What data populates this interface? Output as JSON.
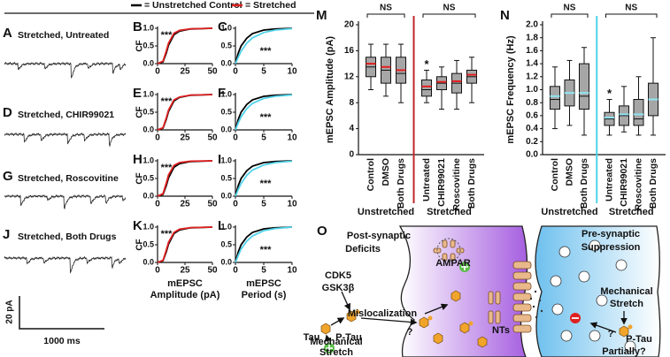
{
  "legend": {
    "control": "= Unstretched Control",
    "stretched": "= Stretched",
    "control_color": "#000000",
    "stretched_color": "#e02020"
  },
  "traces": [
    {
      "letter": "A",
      "title": "Stretched, Untreated"
    },
    {
      "letter": "D",
      "title": "Stretched, CHIR99021"
    },
    {
      "letter": "G",
      "title": "Stretched, Roscovitine"
    },
    {
      "letter": "J",
      "title": "Stretched, Both Drugs"
    }
  ],
  "scale_bar": {
    "y": "20 pA",
    "x": "1000 ms"
  },
  "chart_data": [
    {
      "type": "line",
      "letter": "B",
      "ylabel": "CF",
      "annotation": "***",
      "x": [
        0,
        5,
        8,
        10,
        15,
        20,
        30,
        50
      ],
      "xlim": [
        0,
        50
      ],
      "xticks": [
        0,
        25,
        50
      ],
      "ylim": [
        0,
        1
      ],
      "yticks": [
        {
          "value": 0,
          "label": "0.0"
        },
        0.5,
        {
          "value": 1,
          "label": "1.0"
        }
      ],
      "series": [
        {
          "color": "#000000",
          "values": [
            0,
            0.05,
            0.3,
            0.52,
            0.82,
            0.92,
            0.98,
            1
          ]
        },
        {
          "color": "#e02020",
          "values": [
            0,
            0.07,
            0.36,
            0.58,
            0.86,
            0.94,
            0.985,
            1
          ]
        }
      ]
    },
    {
      "type": "line",
      "letter": "C",
      "annotation": "***",
      "x": [
        0,
        0.5,
        1,
        2,
        3,
        5,
        7,
        10
      ],
      "xlim": [
        0,
        10
      ],
      "xticks": [
        0,
        5,
        10
      ],
      "ylim": [
        0,
        1
      ],
      "yticks": [
        {
          "value": 0,
          "label": "0.0"
        },
        0.5,
        {
          "value": 1,
          "label": "1.0"
        }
      ],
      "series": [
        {
          "color": "#000000",
          "values": [
            0,
            0.3,
            0.5,
            0.72,
            0.85,
            0.95,
            0.98,
            1
          ]
        },
        {
          "color": "#4fd2e8",
          "values": [
            0,
            0.18,
            0.35,
            0.58,
            0.73,
            0.88,
            0.95,
            0.99
          ]
        }
      ]
    },
    {
      "type": "line",
      "letter": "E",
      "ylabel": "CF",
      "annotation": "***",
      "x": [
        0,
        5,
        8,
        10,
        15,
        20,
        30,
        50
      ],
      "xlim": [
        0,
        50
      ],
      "xticks": [
        0,
        25,
        50
      ],
      "ylim": [
        0,
        1
      ],
      "yticks": [
        {
          "value": 0,
          "label": "0.0"
        },
        0.5,
        {
          "value": 1,
          "label": "1.0"
        }
      ],
      "series": [
        {
          "color": "#000000",
          "values": [
            0,
            0.05,
            0.3,
            0.52,
            0.82,
            0.92,
            0.98,
            1
          ]
        },
        {
          "color": "#e02020",
          "values": [
            0,
            0.06,
            0.34,
            0.56,
            0.85,
            0.93,
            0.985,
            1
          ]
        }
      ]
    },
    {
      "type": "line",
      "letter": "F",
      "annotation": "***",
      "x": [
        0,
        0.5,
        1,
        2,
        3,
        5,
        7,
        10
      ],
      "xlim": [
        0,
        10
      ],
      "xticks": [
        0,
        5,
        10
      ],
      "ylim": [
        0,
        1
      ],
      "yticks": [
        {
          "value": 0,
          "label": "0.0"
        },
        0.5,
        {
          "value": 1,
          "label": "1.0"
        }
      ],
      "series": [
        {
          "color": "#000000",
          "values": [
            0,
            0.3,
            0.5,
            0.72,
            0.85,
            0.95,
            0.98,
            1
          ]
        },
        {
          "color": "#4fd2e8",
          "values": [
            0,
            0.2,
            0.37,
            0.6,
            0.75,
            0.89,
            0.95,
            0.99
          ]
        }
      ]
    },
    {
      "type": "line",
      "letter": "H",
      "ylabel": "CF",
      "annotation": "***",
      "x": [
        0,
        5,
        8,
        10,
        15,
        20,
        30,
        50
      ],
      "xlim": [
        0,
        50
      ],
      "xticks": [
        0,
        25,
        50
      ],
      "ylim": [
        0,
        1
      ],
      "yticks": [
        {
          "value": 0,
          "label": "0.0"
        },
        0.5,
        {
          "value": 1,
          "label": "1.0"
        }
      ],
      "series": [
        {
          "color": "#000000",
          "values": [
            0,
            0.05,
            0.3,
            0.52,
            0.82,
            0.92,
            0.98,
            1
          ]
        },
        {
          "color": "#e02020",
          "values": [
            0,
            0.07,
            0.37,
            0.6,
            0.87,
            0.95,
            0.99,
            1
          ]
        }
      ]
    },
    {
      "type": "line",
      "letter": "I",
      "annotation": "***",
      "x": [
        0,
        0.5,
        1,
        2,
        3,
        5,
        7,
        10
      ],
      "xlim": [
        0,
        10
      ],
      "xticks": [
        0,
        5,
        10
      ],
      "ylim": [
        0,
        1
      ],
      "yticks": [
        {
          "value": 0,
          "label": "0.0"
        },
        0.5,
        {
          "value": 1,
          "label": "1.0"
        }
      ],
      "series": [
        {
          "color": "#000000",
          "values": [
            0,
            0.3,
            0.5,
            0.72,
            0.85,
            0.95,
            0.98,
            1
          ]
        },
        {
          "color": "#4fd2e8",
          "values": [
            0,
            0.19,
            0.36,
            0.59,
            0.74,
            0.88,
            0.95,
            0.99
          ]
        }
      ]
    },
    {
      "type": "line",
      "letter": "K",
      "ylabel": "CF",
      "annotation": "***",
      "xlabel": [
        "mEPSC",
        "Amplitude (pA)"
      ],
      "x": [
        0,
        5,
        8,
        10,
        15,
        20,
        30,
        50
      ],
      "xlim": [
        0,
        50
      ],
      "xticks": [
        0,
        25,
        50
      ],
      "ylim": [
        0,
        1
      ],
      "yticks": [
        {
          "value": 0,
          "label": "0.0"
        },
        0.5,
        {
          "value": 1,
          "label": "1.0"
        }
      ],
      "series": [
        {
          "color": "#000000",
          "values": [
            0,
            0.05,
            0.3,
            0.52,
            0.82,
            0.92,
            0.98,
            1
          ]
        },
        {
          "color": "#e02020",
          "values": [
            0,
            0.06,
            0.35,
            0.57,
            0.85,
            0.94,
            0.985,
            1
          ]
        }
      ]
    },
    {
      "type": "line",
      "letter": "L",
      "annotation": "***",
      "xlabel": [
        "mEPSC",
        "Period (s)"
      ],
      "x": [
        0,
        0.5,
        1,
        2,
        3,
        5,
        7,
        10
      ],
      "xlim": [
        0,
        10
      ],
      "xticks": [
        0,
        5,
        10
      ],
      "ylim": [
        0,
        1
      ],
      "yticks": [
        {
          "value": 0,
          "label": "0.0"
        },
        0.5,
        {
          "value": 1,
          "label": "1.0"
        }
      ],
      "series": [
        {
          "color": "#000000",
          "values": [
            0,
            0.3,
            0.5,
            0.72,
            0.85,
            0.95,
            0.98,
            1
          ]
        },
        {
          "color": "#4fd2e8",
          "values": [
            0,
            0.2,
            0.38,
            0.6,
            0.75,
            0.9,
            0.96,
            1
          ]
        }
      ]
    },
    {
      "type": "box",
      "letter": "M",
      "ylabel": "mEPSC Amplitude (pA)",
      "ylim": [
        0,
        20
      ],
      "yticks": [
        0,
        4,
        8,
        12,
        16,
        20
      ],
      "box_color": "#a6a6a6",
      "mean_color": "#e02020",
      "divider_color": "#c0262b",
      "groups": [
        {
          "label": "Unstretched",
          "annotation": "NS",
          "categories": [
            "Control",
            "DMSO",
            "Both Drugs"
          ],
          "min": [
            10,
            9,
            8
          ],
          "q1": [
            12,
            11,
            11
          ],
          "median": [
            13.5,
            13,
            12.5
          ],
          "q3": [
            15,
            15,
            15
          ],
          "max": [
            17,
            17,
            17
          ],
          "means": [
            14,
            13.5,
            13
          ],
          "annotations": [
            null,
            null,
            null
          ]
        },
        {
          "label": "Stretched",
          "annotation": "NS",
          "categories": [
            "Untreated",
            "CHIR99021",
            "Roscovitine",
            "Both Drugs"
          ],
          "min": [
            8,
            7,
            7,
            8
          ],
          "q1": [
            9,
            10,
            9.5,
            11
          ],
          "median": [
            10,
            11,
            11,
            12
          ],
          "q3": [
            11.5,
            12,
            12.5,
            13
          ],
          "max": [
            13,
            13.5,
            14.5,
            15
          ],
          "means": [
            10.5,
            11.2,
            11.3,
            12.3
          ],
          "annotations": [
            "*",
            null,
            null,
            null
          ]
        }
      ]
    },
    {
      "type": "box",
      "letter": "N",
      "ylabel": "mEPSC Frequency (Hz)",
      "ylim": [
        0,
        2
      ],
      "yticks": [
        {
          "value": 0,
          "label": "0.0"
        },
        0.2,
        0.4,
        0.6,
        0.8,
        {
          "value": 1,
          "label": "1.0"
        },
        1.2,
        1.4,
        1.6,
        1.8,
        {
          "value": 2,
          "label": "2.0"
        }
      ],
      "box_color": "#a6a6a6",
      "mean_color": "#8fe6f2",
      "divider_color": "#4fd2e8",
      "groups": [
        {
          "label": "Unstretched",
          "annotation": "NS",
          "categories": [
            "Control",
            "DMSO",
            "Both Drugs"
          ],
          "min": [
            0.4,
            0.45,
            0.3
          ],
          "q1": [
            0.7,
            0.75,
            0.7
          ],
          "median": [
            0.85,
            0.95,
            0.9
          ],
          "q3": [
            1.05,
            1.15,
            1.4
          ],
          "max": [
            1.35,
            1.45,
            1.65
          ],
          "means": [
            0.9,
            0.95,
            0.95
          ],
          "annotations": [
            null,
            null,
            null
          ]
        },
        {
          "label": "Stretched",
          "annotation": "NS",
          "categories": [
            "Untreated",
            "CHIR99021",
            "Roscovitine",
            "Both Drugs"
          ],
          "min": [
            0.3,
            0.35,
            0.3,
            0.3
          ],
          "q1": [
            0.45,
            0.45,
            0.45,
            0.6
          ],
          "median": [
            0.55,
            0.6,
            0.55,
            0.85
          ],
          "q3": [
            0.65,
            0.75,
            0.85,
            1.1
          ],
          "max": [
            0.85,
            1.05,
            1.2,
            1.8
          ],
          "means": [
            0.57,
            0.62,
            0.62,
            0.85
          ],
          "annotations": [
            "*",
            null,
            null,
            null
          ]
        }
      ]
    }
  ],
  "diagram": {
    "letter": "O",
    "post_title": [
      "Post-synaptic",
      "Deficits"
    ],
    "pre_title": [
      "Pre-synaptic",
      "Suppression"
    ],
    "ampar": "AMPAR",
    "kinases": [
      "CDK5",
      "GSK3β"
    ],
    "mislocalization": "Mislocalization",
    "left_question": "?",
    "nts": "NTs",
    "tau": "Tau",
    "left_ptau": "P-Tau",
    "left_stretch": [
      "Mechanical",
      "Stretch"
    ],
    "right_stretch": [
      "Mechanical",
      "Stretch"
    ],
    "right_question": "?",
    "right_ptau": "P-Tau",
    "partially": "Partially?"
  }
}
